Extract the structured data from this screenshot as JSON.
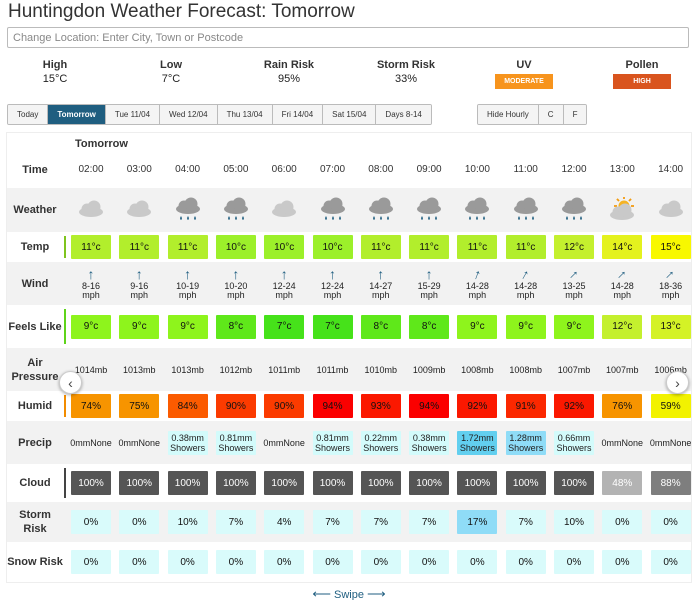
{
  "page": {
    "title": "Huntingdon Weather Forecast: Tomorrow"
  },
  "search": {
    "placeholder": "Change Location: Enter City, Town or Postcode"
  },
  "summary": {
    "high": {
      "label": "High",
      "value": "15°C"
    },
    "low": {
      "label": "Low",
      "value": "7°C"
    },
    "rain": {
      "label": "Rain Risk",
      "value": "95%"
    },
    "storm": {
      "label": "Storm Risk",
      "value": "33%"
    },
    "uv": {
      "label": "UV",
      "badge": "MODERATE",
      "color": "#f7941d"
    },
    "pollen": {
      "label": "Pollen",
      "badge": "HIGH",
      "color": "#d9541e"
    }
  },
  "day_tabs": [
    {
      "label": "Today",
      "active": false
    },
    {
      "label": "Tomorrow",
      "active": true
    },
    {
      "label": "Tue 11/04",
      "active": false
    },
    {
      "label": "Wed 12/04",
      "active": false
    },
    {
      "label": "Thu 13/04",
      "active": false
    },
    {
      "label": "Fri 14/04",
      "active": false
    },
    {
      "label": "Sat 15/04",
      "active": false
    },
    {
      "label": "Days 8-14",
      "active": false
    }
  ],
  "option_tabs": [
    "Hide Hourly",
    "C",
    "F"
  ],
  "forecast": {
    "heading": "Tomorrow",
    "labels": {
      "time": "Time",
      "weather": "Weather",
      "temp": "Temp",
      "wind": "Wind",
      "feels": "Feels Like",
      "pressure": "Air Pressure",
      "humid": "Humid",
      "precip": "Precip",
      "cloud": "Cloud",
      "storm": "Storm Risk",
      "snow": "Snow Risk"
    },
    "hours": [
      {
        "time": "02:00",
        "weather": "cloud",
        "temp": "11°c",
        "temp_color": "#b2ee2c",
        "wind_speed": "8-16",
        "wind_unit": "mph",
        "wind_rot": 0,
        "feels": "9°c",
        "feels_color": "#8ef41c",
        "pressure": "1014mb",
        "humid": "74%",
        "humid_color": "#f79400",
        "precip_amt": "0mm",
        "precip_type": "None",
        "precip_color": "",
        "cloud": "100%",
        "cloud_color": "#555555",
        "storm": "0%",
        "storm_color": "#d9fbfb",
        "snow": "0%"
      },
      {
        "time": "03:00",
        "weather": "cloud",
        "temp": "11°c",
        "temp_color": "#b2ee2c",
        "wind_speed": "9-16",
        "wind_unit": "mph",
        "wind_rot": 0,
        "feels": "9°c",
        "feels_color": "#8ef41c",
        "pressure": "1013mb",
        "humid": "75%",
        "humid_color": "#f79400",
        "precip_amt": "0mm",
        "precip_type": "None",
        "precip_color": "",
        "cloud": "100%",
        "cloud_color": "#555555",
        "storm": "0%",
        "storm_color": "#d9fbfb",
        "snow": "0%"
      },
      {
        "time": "04:00",
        "weather": "cloud-rain",
        "temp": "11°c",
        "temp_color": "#b2ee2c",
        "wind_speed": "10-19",
        "wind_unit": "mph",
        "wind_rot": 0,
        "feels": "9°c",
        "feels_color": "#8ef41c",
        "pressure": "1013mb",
        "humid": "84%",
        "humid_color": "#fb5b00",
        "precip_amt": "0.38mm",
        "precip_type": "Showers",
        "precip_color": "#d3fbfb",
        "cloud": "100%",
        "cloud_color": "#555555",
        "storm": "10%",
        "storm_color": "#d9fbfb",
        "snow": "0%"
      },
      {
        "time": "05:00",
        "weather": "cloud-rain",
        "temp": "10°c",
        "temp_color": "#9cf02a",
        "wind_speed": "10-20",
        "wind_unit": "mph",
        "wind_rot": 0,
        "feels": "8°c",
        "feels_color": "#5fe81a",
        "pressure": "1012mb",
        "humid": "90%",
        "humid_color": "#fb3b00",
        "precip_amt": "0.81mm",
        "precip_type": "Showers",
        "precip_color": "#d3fbfb",
        "cloud": "100%",
        "cloud_color": "#555555",
        "storm": "7%",
        "storm_color": "#d9fbfb",
        "snow": "0%"
      },
      {
        "time": "06:00",
        "weather": "cloud",
        "temp": "10°c",
        "temp_color": "#9cf02a",
        "wind_speed": "12-24",
        "wind_unit": "mph",
        "wind_rot": 0,
        "feels": "7°c",
        "feels_color": "#46e21a",
        "pressure": "1011mb",
        "humid": "90%",
        "humid_color": "#fb3b00",
        "precip_amt": "0mm",
        "precip_type": "None",
        "precip_color": "",
        "cloud": "100%",
        "cloud_color": "#555555",
        "storm": "4%",
        "storm_color": "#d9fbfb",
        "snow": "0%"
      },
      {
        "time": "07:00",
        "weather": "cloud-rain",
        "temp": "10°c",
        "temp_color": "#9cf02a",
        "wind_speed": "12-24",
        "wind_unit": "mph",
        "wind_rot": 0,
        "feels": "7°c",
        "feels_color": "#46e21a",
        "pressure": "1011mb",
        "humid": "94%",
        "humid_color": "#fb0000",
        "precip_amt": "0.81mm",
        "precip_type": "Showers",
        "precip_color": "#d3fbfb",
        "cloud": "100%",
        "cloud_color": "#555555",
        "storm": "7%",
        "storm_color": "#d9fbfb",
        "snow": "0%"
      },
      {
        "time": "08:00",
        "weather": "cloud-rain",
        "temp": "11°c",
        "temp_color": "#b2ee2c",
        "wind_speed": "14-27",
        "wind_unit": "mph",
        "wind_rot": 0,
        "feels": "8°c",
        "feels_color": "#5fe81a",
        "pressure": "1010mb",
        "humid": "93%",
        "humid_color": "#fb1800",
        "precip_amt": "0.22mm",
        "precip_type": "Showers",
        "precip_color": "#d3fbfb",
        "cloud": "100%",
        "cloud_color": "#555555",
        "storm": "7%",
        "storm_color": "#d9fbfb",
        "snow": "0%"
      },
      {
        "time": "09:00",
        "weather": "cloud-rain",
        "temp": "11°c",
        "temp_color": "#b2ee2c",
        "wind_speed": "15-29",
        "wind_unit": "mph",
        "wind_rot": 0,
        "feels": "8°c",
        "feels_color": "#5fe81a",
        "pressure": "1009mb",
        "humid": "94%",
        "humid_color": "#fb0000",
        "precip_amt": "0.38mm",
        "precip_type": "Showers",
        "precip_color": "#d3fbfb",
        "cloud": "100%",
        "cloud_color": "#555555",
        "storm": "7%",
        "storm_color": "#d9fbfb",
        "snow": "0%"
      },
      {
        "time": "10:00",
        "weather": "cloud-rain",
        "temp": "11°c",
        "temp_color": "#b2ee2c",
        "wind_speed": "14-28",
        "wind_unit": "mph",
        "wind_rot": 20,
        "feels": "9°c",
        "feels_color": "#8ef41c",
        "pressure": "1008mb",
        "humid": "92%",
        "humid_color": "#fb1800",
        "precip_amt": "1.72mm",
        "precip_type": "Showers",
        "precip_color": "#62cfef",
        "cloud": "100%",
        "cloud_color": "#555555",
        "storm": "17%",
        "storm_color": "#8fdcf7",
        "snow": "0%"
      },
      {
        "time": "11:00",
        "weather": "cloud-rain",
        "temp": "11°c",
        "temp_color": "#b2ee2c",
        "wind_speed": "14-28",
        "wind_unit": "mph",
        "wind_rot": 30,
        "feels": "9°c",
        "feels_color": "#8ef41c",
        "pressure": "1008mb",
        "humid": "91%",
        "humid_color": "#fb2800",
        "precip_amt": "1.28mm",
        "precip_type": "Showers",
        "precip_color": "#8fdcf7",
        "cloud": "100%",
        "cloud_color": "#555555",
        "storm": "7%",
        "storm_color": "#d9fbfb",
        "snow": "0%"
      },
      {
        "time": "12:00",
        "weather": "cloud-rain",
        "temp": "12°c",
        "temp_color": "#c4f02e",
        "wind_speed": "13-25",
        "wind_unit": "mph",
        "wind_rot": 45,
        "feels": "9°c",
        "feels_color": "#8ef41c",
        "pressure": "1007mb",
        "humid": "92%",
        "humid_color": "#fb1800",
        "precip_amt": "0.66mm",
        "precip_type": "Showers",
        "precip_color": "#d3fbfb",
        "cloud": "100%",
        "cloud_color": "#555555",
        "storm": "10%",
        "storm_color": "#d9fbfb",
        "snow": "0%"
      },
      {
        "time": "13:00",
        "weather": "sun-cloud",
        "temp": "14°c",
        "temp_color": "#e4f21e",
        "wind_speed": "14-28",
        "wind_unit": "mph",
        "wind_rot": 45,
        "feels": "12°c",
        "feels_color": "#c4f02e",
        "pressure": "1007mb",
        "humid": "76%",
        "humid_color": "#f79400",
        "precip_amt": "0mm",
        "precip_type": "None",
        "precip_color": "",
        "cloud": "48%",
        "cloud_color": "#b3b3b3",
        "storm": "0%",
        "storm_color": "#d9fbfb",
        "snow": "0%"
      },
      {
        "time": "14:00",
        "weather": "cloud",
        "temp": "15°c",
        "temp_color": "#f8f800",
        "wind_speed": "18-36",
        "wind_unit": "mph",
        "wind_rot": 45,
        "feels": "13°c",
        "feels_color": "#d4f226",
        "pressure": "1006mb",
        "humid": "59%",
        "humid_color": "#f2f200",
        "precip_amt": "0mm",
        "precip_type": "None",
        "precip_color": "",
        "cloud": "88%",
        "cloud_color": "#7e7e7e",
        "storm": "0%",
        "storm_color": "#d9fbfb",
        "snow": "0%"
      }
    ]
  },
  "nav": {
    "prev_icon": "chevron-left-icon",
    "next_icon": "chevron-right-icon"
  },
  "swipe": {
    "label": "Swipe"
  }
}
